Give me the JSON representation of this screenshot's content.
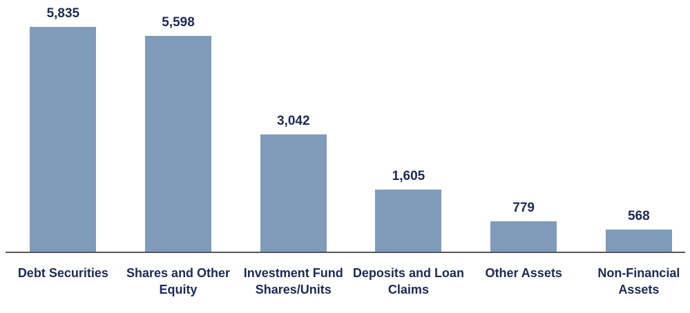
{
  "chart_data": {
    "type": "bar",
    "categories": [
      "Debt Securities",
      "Shares and Other Equity",
      "Investment Fund Shares/Units",
      "Deposits and Loan Claims",
      "Other Assets",
      "Non-Financial Assets"
    ],
    "values": [
      5835,
      5598,
      3042,
      1605,
      779,
      568
    ],
    "value_labels": [
      "5,835",
      "5,598",
      "3,042",
      "1,605",
      "779",
      "568"
    ],
    "color": "#7f9bba"
  }
}
